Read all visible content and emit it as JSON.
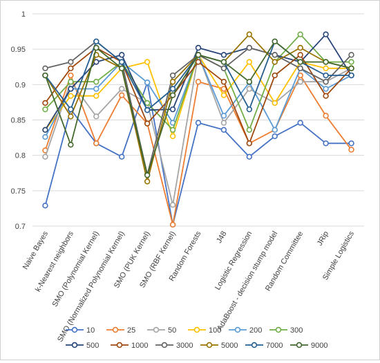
{
  "chart_data": {
    "type": "line",
    "categories": [
      "Naive Bayes",
      "k-Nearest neighbors",
      "SMO (Polynomial Kernel)",
      "SMO (Normalized Polynomial Kernel)",
      "SMO (PUK Kernel)",
      "SMO (RBF Kernel)",
      "Random Forests",
      "J48",
      "Logistic Regression",
      "AdaBoost - decision stump model",
      "Random Committee",
      "JRip",
      "Simple Logistics"
    ],
    "y_ticks": [
      "0.7",
      "0.75",
      "0.8",
      "0.85",
      "0.9",
      "0.95",
      "1"
    ],
    "ylim": [
      0.7,
      1.0
    ],
    "grid": true,
    "legend_position": "bottom",
    "series": [
      {
        "name": "10",
        "color": "#4472c4",
        "values": [
          0.729,
          0.865,
          0.817,
          0.798,
          0.903,
          0.702,
          0.846,
          0.836,
          0.798,
          0.827,
          0.846,
          0.817,
          0.817
        ]
      },
      {
        "name": "25",
        "color": "#ed7d31",
        "values": [
          0.807,
          0.913,
          0.817,
          0.885,
          0.845,
          0.702,
          0.904,
          0.894,
          0.817,
          0.836,
          0.913,
          0.856,
          0.808
        ]
      },
      {
        "name": "50",
        "color": "#a5a5a5",
        "values": [
          0.798,
          0.904,
          0.855,
          0.894,
          0.874,
          0.73,
          0.942,
          0.846,
          0.894,
          0.874,
          0.904,
          0.904,
          0.923
        ]
      },
      {
        "name": "100",
        "color": "#ffc000",
        "values": [
          0.836,
          0.884,
          0.884,
          0.923,
          0.932,
          0.827,
          0.942,
          0.885,
          0.932,
          0.874,
          0.932,
          0.923,
          0.923
        ]
      },
      {
        "name": "200",
        "color": "#5b9bd5",
        "values": [
          0.826,
          0.894,
          0.894,
          0.932,
          0.903,
          0.846,
          0.942,
          0.856,
          0.903,
          0.836,
          0.923,
          0.894,
          0.913
        ]
      },
      {
        "name": "300",
        "color": "#70ad47",
        "values": [
          0.865,
          0.904,
          0.904,
          0.932,
          0.874,
          0.836,
          0.942,
          0.923,
          0.836,
          0.932,
          0.971,
          0.932,
          0.932
        ]
      },
      {
        "name": "500",
        "color": "#264478",
        "values": [
          0.836,
          0.894,
          0.932,
          0.942,
          0.864,
          0.865,
          0.952,
          0.942,
          0.952,
          0.942,
          0.932,
          0.971,
          0.913
        ]
      },
      {
        "name": "1000",
        "color": "#9e480e",
        "values": [
          0.874,
          0.923,
          0.952,
          0.932,
          0.845,
          0.885,
          0.932,
          0.904,
          0.817,
          0.913,
          0.942,
          0.884,
          0.923
        ]
      },
      {
        "name": "3000",
        "color": "#636363",
        "values": [
          0.923,
          0.932,
          0.961,
          0.932,
          0.773,
          0.913,
          0.942,
          0.923,
          0.952,
          0.942,
          0.923,
          0.904,
          0.942
        ]
      },
      {
        "name": "5000",
        "color": "#997300",
        "values": [
          0.913,
          0.855,
          0.942,
          0.923,
          0.763,
          0.904,
          0.942,
          0.932,
          0.971,
          0.932,
          0.952,
          0.932,
          0.923
        ]
      },
      {
        "name": "7000",
        "color": "#255e91",
        "values": [
          0.913,
          0.865,
          0.961,
          0.932,
          0.864,
          0.894,
          0.942,
          0.932,
          0.865,
          0.961,
          0.932,
          0.913,
          0.913
        ]
      },
      {
        "name": "9000",
        "color": "#43682b",
        "values": [
          0.913,
          0.815,
          0.952,
          0.923,
          0.772,
          0.885,
          0.942,
          0.932,
          0.904,
          0.961,
          0.932,
          0.932,
          0.923
        ]
      }
    ]
  }
}
